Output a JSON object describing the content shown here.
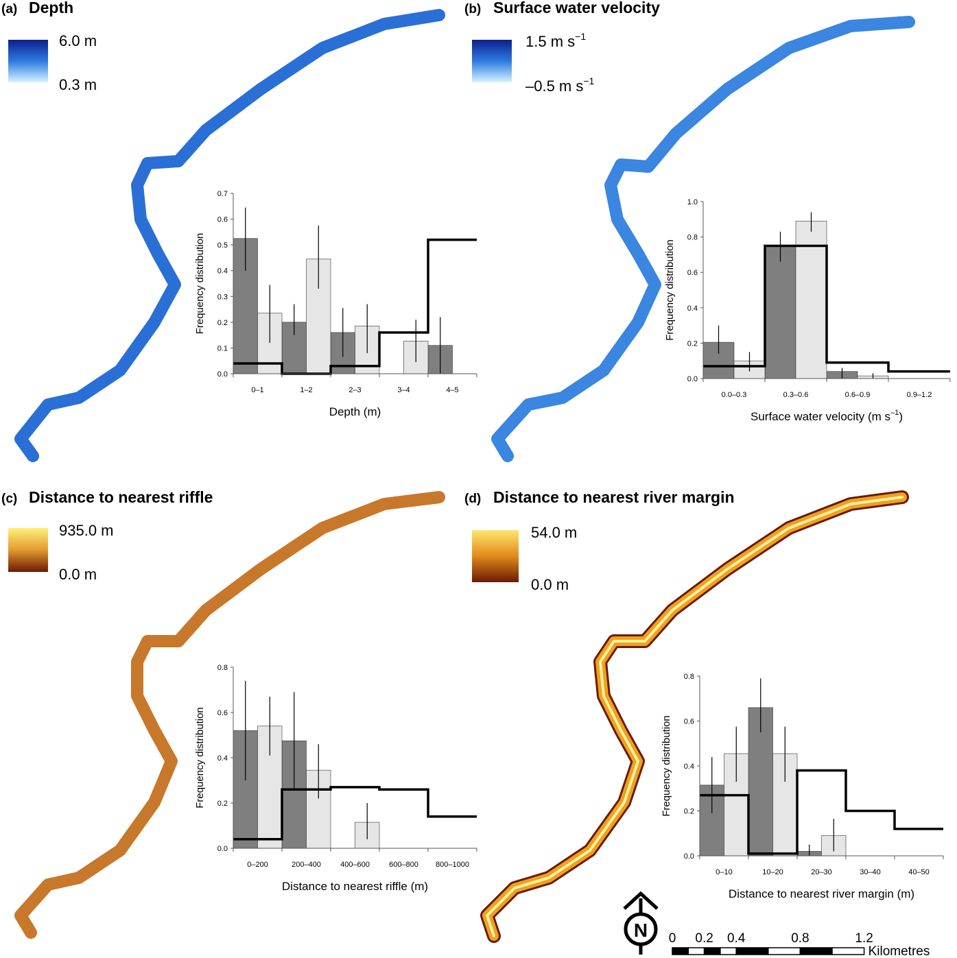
{
  "panels": [
    {
      "letter": "(a)",
      "title": "Depth",
      "legend": {
        "max_label": "6.0 m",
        "min_label": "0.3 m",
        "color_top": "#0d1f8c",
        "color_mid": "#2d7be0",
        "color_bottom": "#d6f3ff"
      },
      "river_color": "#2a6fd6",
      "chart": {
        "type": "bar",
        "categories": [
          "0–1",
          "1–2",
          "2–3",
          "3–4",
          "4–5"
        ],
        "series": [
          {
            "values": [
              0.525,
              0.2,
              0.16,
              null,
              0.11
            ],
            "errors": [
              [
                0.4,
                0.645
              ],
              [
                0.15,
                0.27
              ],
              [
                0.065,
                0.255
              ],
              null,
              [
                0.0,
                0.22
              ]
            ],
            "color": "#7f7f7f"
          },
          {
            "values": [
              0.235,
              0.445,
              0.185,
              0.127,
              null
            ],
            "errors": [
              [
                0.12,
                0.345
              ],
              [
                0.33,
                0.575
              ],
              [
                0.08,
                0.27
              ],
              [
                0.045,
                0.21
              ],
              null
            ],
            "color": "#e6e6e6"
          }
        ],
        "step": [
          0.04,
          0.0,
          0.03,
          0.16,
          0.52
        ],
        "ylim": [
          0,
          0.7
        ],
        "yticks": [
          "0.0",
          "0.1",
          "0.2",
          "0.3",
          "0.4",
          "0.5",
          "0.6",
          "0.7"
        ],
        "xlabel": "Depth (m)",
        "ylabel": "Frequency distribution"
      }
    },
    {
      "letter": "(b)",
      "title": "Surface water velocity",
      "legend": {
        "max_label": "1.5 m s",
        "max_sup": "−1",
        "min_label": "–0.5 m s",
        "min_sup": "−1",
        "color_top": "#0d1f8c",
        "color_mid": "#2d7be0",
        "color_bottom": "#d6f3ff"
      },
      "river_color": "#3a86e0",
      "chart": {
        "type": "bar",
        "categories": [
          "0.0–0.3",
          "0.3–0.6",
          "0.6–0.9",
          "0.9–1.2"
        ],
        "series": [
          {
            "values": [
              0.205,
              0.75,
              0.04,
              null
            ],
            "errors": [
              [
                0.14,
                0.3
              ],
              [
                0.66,
                0.83
              ],
              [
                0.0,
                0.06
              ],
              null
            ],
            "color": "#7f7f7f"
          },
          {
            "values": [
              0.1,
              0.89,
              0.015,
              null
            ],
            "errors": [
              [
                0.04,
                0.15
              ],
              [
                0.83,
                0.94
              ],
              [
                0.0,
                0.03
              ],
              null
            ],
            "color": "#e6e6e6"
          }
        ],
        "step": [
          0.07,
          0.75,
          0.09,
          0.04
        ],
        "ylim": [
          0,
          1.0
        ],
        "yticks": [
          "0.0",
          "0.2",
          "0.4",
          "0.6",
          "0.8",
          "1.0"
        ],
        "xlabel": "Surface water velocity (m s",
        "xlabel_sup": "–1",
        "xlabel_end": ")",
        "ylabel": "Frequency distribution"
      }
    },
    {
      "letter": "(c)",
      "title": "Distance to nearest riffle",
      "legend": {
        "max_label": "935.0 m",
        "min_label": "0.0 m",
        "color_top": "#fff07a",
        "color_mid": "#e29a30",
        "color_bottom": "#6b1a05"
      },
      "river_color": "#c8782a",
      "chart": {
        "type": "bar",
        "categories": [
          "0–200",
          "200–400",
          "400–600",
          "600–800",
          "800–1000"
        ],
        "series": [
          {
            "values": [
              0.52,
              0.475,
              null,
              null,
              null
            ],
            "errors": [
              [
                0.3,
                0.74
              ],
              [
                0.26,
                0.69
              ],
              null,
              null,
              null
            ],
            "color": "#7f7f7f"
          },
          {
            "values": [
              0.54,
              0.345,
              0.115,
              null,
              null
            ],
            "errors": [
              [
                0.41,
                0.67
              ],
              [
                0.22,
                0.46
              ],
              [
                0.04,
                0.2
              ],
              null,
              null
            ],
            "color": "#e6e6e6"
          }
        ],
        "step": [
          0.04,
          0.26,
          0.27,
          0.26,
          0.14
        ],
        "ylim": [
          0,
          0.8
        ],
        "yticks": [
          "0.0",
          "0.2",
          "0.4",
          "0.6",
          "0.8"
        ],
        "xlabel": "Distance to nearest riffle (m)",
        "ylabel": "Frequency distribution"
      }
    },
    {
      "letter": "(d)",
      "title": "Distance to nearest river margin",
      "legend": {
        "max_label": "54.0 m",
        "min_label": "0.0 m",
        "color_top": "#ffe670",
        "color_mid": "#e08a1a",
        "color_bottom": "#6b1a05"
      },
      "river_color": "#f0a020",
      "chart": {
        "type": "bar",
        "categories": [
          "0–10",
          "10–20",
          "20–30",
          "30–40",
          "40–50"
        ],
        "series": [
          {
            "values": [
              0.315,
              0.66,
              0.02,
              null,
              null
            ],
            "errors": [
              [
                0.19,
                0.44
              ],
              [
                0.55,
                0.79
              ],
              [
                0.0,
                0.05
              ],
              null,
              null
            ],
            "color": "#7f7f7f"
          },
          {
            "values": [
              0.455,
              0.455,
              0.09,
              null,
              null
            ],
            "errors": [
              [
                0.33,
                0.575
              ],
              [
                0.33,
                0.575
              ],
              [
                0.02,
                0.165
              ],
              null,
              null
            ],
            "color": "#e6e6e6"
          }
        ],
        "step": [
          0.27,
          0.01,
          0.38,
          0.2,
          0.12
        ],
        "ylim": [
          0,
          0.8
        ],
        "yticks": [
          "0.0",
          "0.2",
          "0.4",
          "0.6",
          "0.8"
        ],
        "xlabel": "Distance to nearest river margin (m)",
        "ylabel": "Frequency distribution"
      }
    }
  ],
  "north_arrow": {
    "letter": "N"
  },
  "scale_bar": {
    "ticks": [
      "0",
      "0.2",
      "0.4",
      "0.8",
      "1.2"
    ],
    "tick_values": [
      0,
      0.2,
      0.4,
      0.8,
      1.2
    ],
    "unit": "Kilometres"
  }
}
